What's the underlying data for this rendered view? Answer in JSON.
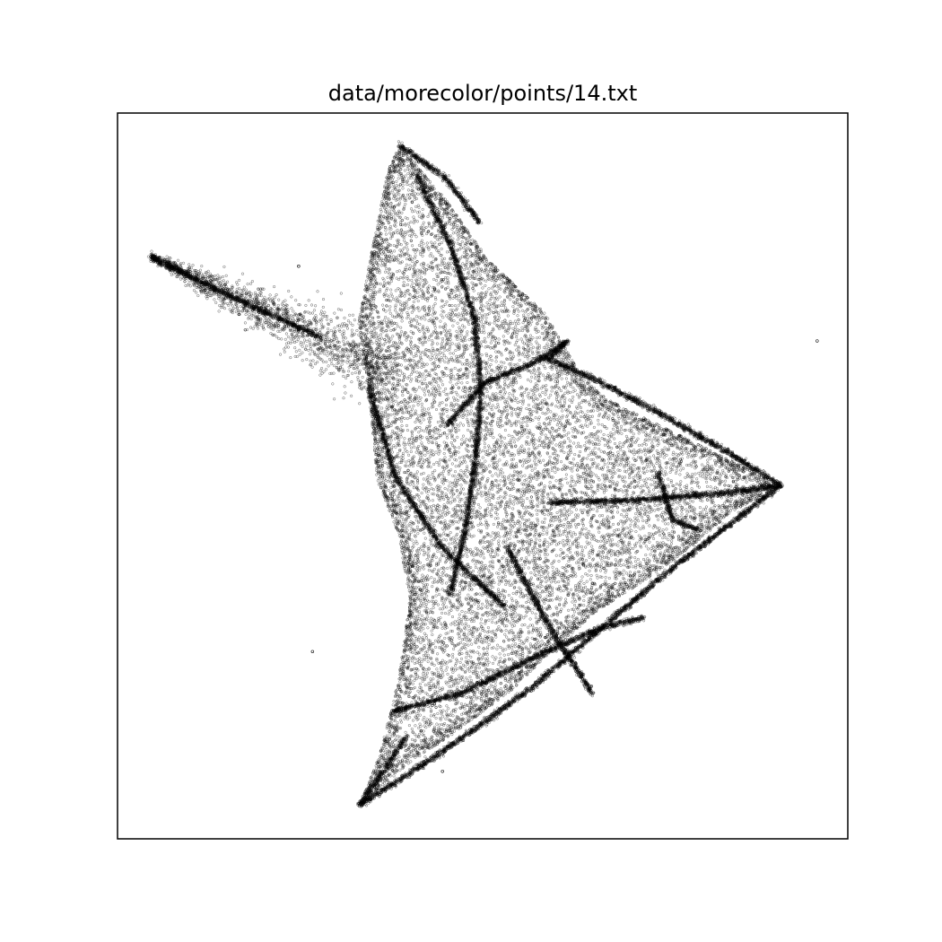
{
  "chart_data": {
    "type": "scatter",
    "title": "data/morecolor/points/14.txt",
    "xlabel": "",
    "ylabel": "",
    "xlim": [
      0,
      100
    ],
    "ylim": [
      0,
      100
    ],
    "show_ticks": false,
    "grid": false,
    "marker_color": "#000000",
    "marker_style": "hollow-circle",
    "point_count_approx": 30000,
    "outliers": [
      [
        24.8,
        78.9
      ],
      [
        95.8,
        68.6
      ],
      [
        26.7,
        25.8
      ],
      [
        44.5,
        9.3
      ]
    ],
    "outline_vertices": [
      [
        38.6,
        95.6
      ],
      [
        45.0,
        88.0
      ],
      [
        51.0,
        79.5
      ],
      [
        58.5,
        72.5
      ],
      [
        63.5,
        63.8
      ],
      [
        67.0,
        60.6
      ],
      [
        90.8,
        48.7
      ],
      [
        84.0,
        45.0
      ],
      [
        79.5,
        41.0
      ],
      [
        73.5,
        36.5
      ],
      [
        66.0,
        31.5
      ],
      [
        60.0,
        26.5
      ],
      [
        54.0,
        20.5
      ],
      [
        46.0,
        14.5
      ],
      [
        40.0,
        10.5
      ],
      [
        33.2,
        4.7
      ],
      [
        36.0,
        12.0
      ],
      [
        38.5,
        22.0
      ],
      [
        40.0,
        33.0
      ],
      [
        38.5,
        42.0
      ],
      [
        35.5,
        49.5
      ],
      [
        34.4,
        62.3
      ],
      [
        33.0,
        71.0
      ],
      [
        35.0,
        82.0
      ],
      [
        37.0,
        92.0
      ]
    ],
    "tail_start": [
      4.6,
      80.2
    ],
    "tail_end": [
      38.0,
      64.0
    ],
    "dense_strokes": [
      [
        [
          38.6,
          95.6
        ],
        [
          45.0,
          91.0
        ],
        [
          49.5,
          85.0
        ]
      ],
      [
        [
          4.6,
          80.2
        ],
        [
          16.0,
          74.5
        ],
        [
          28.0,
          69.0
        ]
      ],
      [
        [
          58.5,
          66.3
        ],
        [
          66.0,
          63.0
        ],
        [
          74.5,
          58.5
        ],
        [
          84.0,
          53.0
        ],
        [
          90.8,
          48.7
        ]
      ],
      [
        [
          33.2,
          4.7
        ],
        [
          40.0,
          9.0
        ],
        [
          48.0,
          14.5
        ],
        [
          57.0,
          21.0
        ],
        [
          65.0,
          28.0
        ],
        [
          75.0,
          36.5
        ],
        [
          90.8,
          48.7
        ]
      ],
      [
        [
          59.0,
          46.3
        ],
        [
          70.0,
          46.6
        ],
        [
          82.0,
          47.5
        ],
        [
          90.8,
          48.7
        ]
      ],
      [
        [
          33.2,
          4.7
        ],
        [
          36.5,
          9.5
        ],
        [
          39.5,
          14.0
        ]
      ],
      [
        [
          34.4,
          62.3
        ],
        [
          38.0,
          50.0
        ],
        [
          44.5,
          40.0
        ],
        [
          53.0,
          32.0
        ]
      ],
      [
        [
          45.5,
          33.5
        ],
        [
          47.5,
          42.0
        ],
        [
          49.0,
          52.0
        ],
        [
          49.8,
          62.0
        ],
        [
          48.8,
          72.0
        ],
        [
          45.5,
          82.0
        ],
        [
          41.0,
          91.5
        ]
      ],
      [
        [
          53.5,
          40.0
        ],
        [
          56.0,
          35.0
        ],
        [
          59.0,
          29.5
        ],
        [
          65.0,
          20.0
        ]
      ],
      [
        [
          37.5,
          17.5
        ],
        [
          47.0,
          20.0
        ],
        [
          57.0,
          25.0
        ],
        [
          66.0,
          29.0
        ],
        [
          72.0,
          30.5
        ]
      ],
      [
        [
          59.0,
          66.0
        ],
        [
          61.5,
          68.5
        ],
        [
          57.0,
          65.5
        ],
        [
          50.5,
          63.0
        ],
        [
          45.0,
          57.0
        ]
      ],
      [
        [
          74.0,
          50.5
        ],
        [
          76.0,
          44.0
        ],
        [
          79.5,
          42.5
        ]
      ]
    ]
  }
}
